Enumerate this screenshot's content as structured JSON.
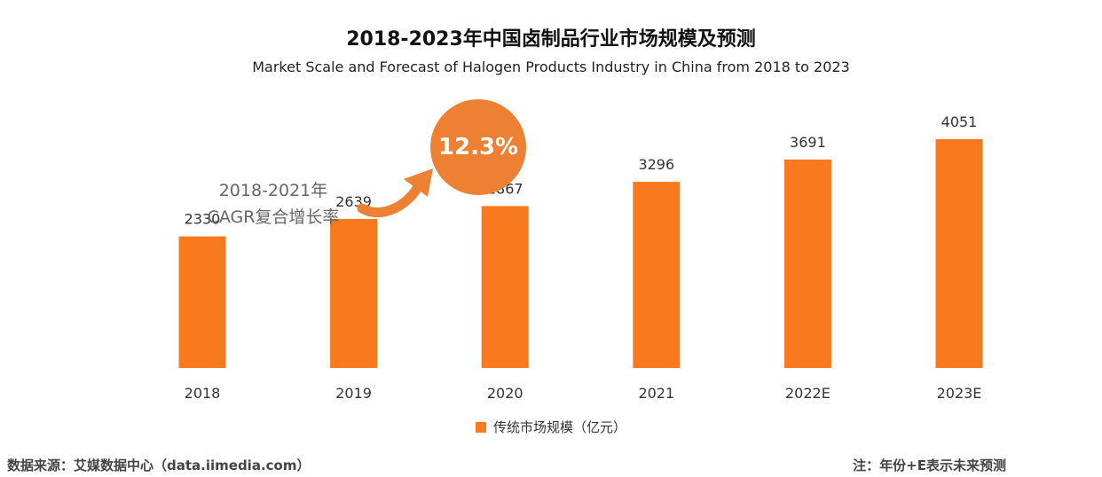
{
  "chart_data": {
    "type": "bar",
    "title": "2018-2023年中国卤制品行业市场规模及预测",
    "subtitle": "Market Scale and Forecast of Halogen Products Industry in China from 2018  to 2023",
    "categories": [
      "2018",
      "2019",
      "2020",
      "2021",
      "2022E",
      "2023E"
    ],
    "series": [
      {
        "name": "传统市场规模（亿元）",
        "values": [
          2330,
          2639,
          2867,
          3296,
          3691,
          4051
        ],
        "color": "#f97a1e"
      }
    ],
    "ylim": [
      0,
      4051
    ],
    "grid": false,
    "legend_position": "bottom",
    "annotation": {
      "value": "12.3%",
      "line1": "2018-2021年",
      "line2": "CAGR复合增长率",
      "circle_color": "#ee8033"
    }
  },
  "footer": {
    "source": "数据来源：艾媒数据中心（data.iimedia.com）",
    "note": "注：年份+E表示未来预测"
  }
}
